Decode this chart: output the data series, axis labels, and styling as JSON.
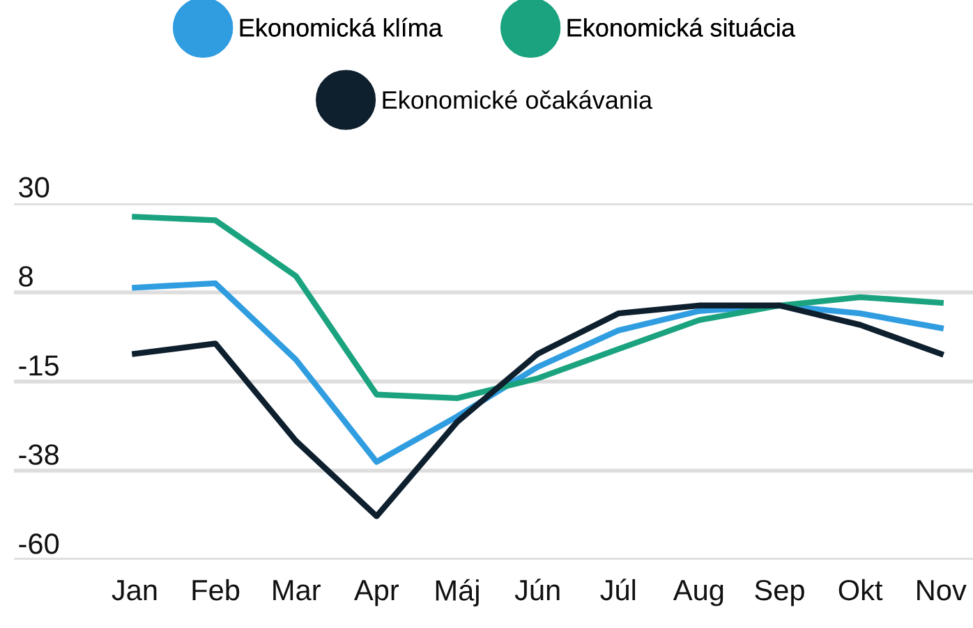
{
  "chart_data": {
    "type": "line",
    "categories": [
      "Jan",
      "Feb",
      "Mar",
      "Apr",
      "Máj",
      "Jún",
      "Júl",
      "Aug",
      "Sep",
      "Okt",
      "Nov"
    ],
    "series": [
      {
        "name": "Ekonomická klíma",
        "color": "#2f9de0",
        "values": [
          8.7,
          9.8,
          -9.5,
          -35.3,
          -23.8,
          -11.3,
          -2.1,
          2.8,
          4.2,
          2.2,
          -1.5
        ]
      },
      {
        "name": "Ekonomická situácia",
        "color": "#1ba37f",
        "values": [
          26.6,
          25.7,
          11.6,
          -18.3,
          -19.2,
          -14.2,
          -6.8,
          0.5,
          4.2,
          6.3,
          4.9
        ]
      },
      {
        "name": "Ekonomické očakávania",
        "color": "#0e1f2e",
        "values": [
          -8.0,
          -5.4,
          -30.0,
          -49.0,
          -25.2,
          -8.0,
          2.2,
          4.2,
          4.2,
          -0.7,
          -8.0
        ]
      }
    ],
    "ylim": [
      -60,
      30
    ],
    "yticks": [
      30,
      {
        "value": 7.5,
        "label": "8"
      },
      -15,
      {
        "value": -37.5,
        "label": "-38"
      },
      -60
    ],
    "grid": "y",
    "legend": "top",
    "marker": "none",
    "line_style": "solid"
  }
}
